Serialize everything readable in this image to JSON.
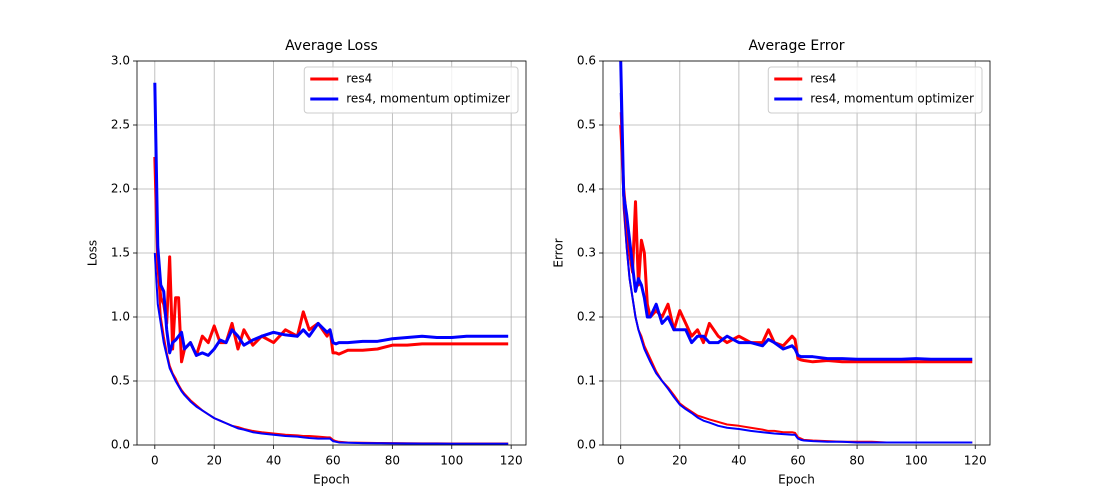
{
  "chart_data": [
    {
      "type": "line",
      "title": "Average Loss",
      "xlabel": "Epoch",
      "ylabel": "Loss",
      "x": [
        0,
        1,
        2,
        3,
        4,
        5,
        6,
        7,
        8,
        9,
        10,
        12,
        14,
        16,
        18,
        20,
        22,
        24,
        26,
        28,
        30,
        33,
        36,
        40,
        44,
        48,
        50,
        52,
        55,
        58,
        59,
        60,
        61,
        62,
        65,
        70,
        75,
        80,
        85,
        90,
        95,
        100,
        105,
        110,
        115,
        119
      ],
      "xlim": [
        -6,
        125
      ],
      "ylim": [
        0,
        3
      ],
      "xticks": [
        0,
        20,
        40,
        60,
        80,
        100,
        120
      ],
      "yticks": [
        {
          "value": 0,
          "label": "0.0"
        },
        0.5,
        {
          "value": 1,
          "label": "1.0"
        },
        1.5,
        {
          "value": 2,
          "label": "2.0"
        },
        2.5,
        {
          "value": 3,
          "label": "3.0"
        }
      ],
      "grid": true,
      "legend": "upper right",
      "series": [
        {
          "color": "#ff0000",
          "linewidth": 2,
          "values": [
            2.2,
            1.4,
            1.0,
            0.85,
            0.72,
            0.62,
            0.56,
            0.52,
            0.47,
            0.43,
            0.4,
            0.35,
            0.31,
            0.27,
            0.24,
            0.21,
            0.19,
            0.17,
            0.15,
            0.14,
            0.125,
            0.11,
            0.1,
            0.09,
            0.08,
            0.075,
            0.07,
            0.07,
            0.065,
            0.06,
            0.06,
            0.04,
            0.03,
            0.025,
            0.02,
            0.018,
            0.016,
            0.015,
            0.014,
            0.013,
            0.013,
            0.012,
            0.012,
            0.012,
            0.012,
            0.012
          ]
        },
        {
          "color": "#0000ff",
          "linewidth": 2,
          "values": [
            1.5,
            1.1,
            0.95,
            0.8,
            0.7,
            0.6,
            0.55,
            0.5,
            0.46,
            0.42,
            0.39,
            0.34,
            0.3,
            0.27,
            0.24,
            0.21,
            0.19,
            0.17,
            0.15,
            0.13,
            0.12,
            0.1,
            0.09,
            0.08,
            0.07,
            0.065,
            0.06,
            0.055,
            0.05,
            0.05,
            0.05,
            0.03,
            0.025,
            0.02,
            0.018,
            0.015,
            0.014,
            0.013,
            0.012,
            0.011,
            0.011,
            0.01,
            0.01,
            0.01,
            0.01,
            0.01
          ]
        },
        {
          "name": "res4",
          "color": "#ff0000",
          "linewidth": 3,
          "values": [
            2.25,
            1.4,
            1.15,
            1.1,
            0.95,
            1.47,
            0.75,
            1.15,
            1.15,
            0.65,
            0.75,
            0.8,
            0.7,
            0.85,
            0.8,
            0.93,
            0.8,
            0.8,
            0.95,
            0.75,
            0.9,
            0.78,
            0.85,
            0.8,
            0.9,
            0.85,
            1.04,
            0.9,
            0.95,
            0.85,
            0.9,
            0.72,
            0.72,
            0.71,
            0.74,
            0.74,
            0.75,
            0.78,
            0.78,
            0.79,
            0.79,
            0.79,
            0.79,
            0.79,
            0.79,
            0.79
          ]
        },
        {
          "name": "res4, momentum optimizer",
          "color": "#0000ff",
          "linewidth": 3,
          "values": [
            2.83,
            1.55,
            1.25,
            1.2,
            0.9,
            0.72,
            0.8,
            0.82,
            0.85,
            0.88,
            0.75,
            0.8,
            0.7,
            0.72,
            0.7,
            0.75,
            0.82,
            0.8,
            0.9,
            0.85,
            0.78,
            0.82,
            0.85,
            0.88,
            0.86,
            0.85,
            0.9,
            0.85,
            0.95,
            0.88,
            0.9,
            0.8,
            0.79,
            0.8,
            0.8,
            0.81,
            0.81,
            0.83,
            0.84,
            0.85,
            0.84,
            0.84,
            0.85,
            0.85,
            0.85,
            0.85
          ]
        }
      ]
    },
    {
      "type": "line",
      "title": "Average Error",
      "xlabel": "Epoch",
      "ylabel": "Error",
      "x": [
        0,
        1,
        2,
        3,
        4,
        5,
        6,
        7,
        8,
        9,
        10,
        12,
        14,
        16,
        18,
        20,
        22,
        24,
        26,
        28,
        30,
        33,
        36,
        40,
        44,
        48,
        50,
        52,
        55,
        58,
        59,
        60,
        61,
        62,
        65,
        70,
        75,
        80,
        85,
        90,
        95,
        100,
        105,
        110,
        115,
        119
      ],
      "xlim": [
        -6,
        125
      ],
      "ylim": [
        0,
        0.6
      ],
      "xticks": [
        0,
        20,
        40,
        60,
        80,
        100,
        120
      ],
      "yticks": [
        {
          "value": 0,
          "label": "0.0"
        },
        0.1,
        0.2,
        0.3,
        0.4,
        0.5,
        0.6
      ],
      "grid": true,
      "legend": "upper right",
      "series": [
        {
          "color": "#ff0000",
          "linewidth": 2,
          "values": [
            0.52,
            0.37,
            0.31,
            0.26,
            0.23,
            0.2,
            0.18,
            0.17,
            0.155,
            0.145,
            0.135,
            0.115,
            0.1,
            0.09,
            0.078,
            0.065,
            0.058,
            0.052,
            0.046,
            0.043,
            0.04,
            0.036,
            0.032,
            0.03,
            0.027,
            0.024,
            0.022,
            0.022,
            0.02,
            0.02,
            0.019,
            0.012,
            0.01,
            0.008,
            0.007,
            0.006,
            0.005,
            0.005,
            0.005,
            0.004,
            0.004,
            0.004,
            0.004,
            0.004,
            0.004,
            0.004
          ]
        },
        {
          "color": "#0000ff",
          "linewidth": 2,
          "values": [
            0.55,
            0.38,
            0.31,
            0.26,
            0.23,
            0.2,
            0.18,
            0.165,
            0.15,
            0.14,
            0.13,
            0.112,
            0.1,
            0.088,
            0.075,
            0.063,
            0.056,
            0.05,
            0.043,
            0.038,
            0.035,
            0.03,
            0.027,
            0.025,
            0.022,
            0.02,
            0.019,
            0.018,
            0.017,
            0.016,
            0.016,
            0.01,
            0.008,
            0.007,
            0.006,
            0.005,
            0.005,
            0.004,
            0.004,
            0.004,
            0.004,
            0.004,
            0.004,
            0.004,
            0.004,
            0.004
          ]
        },
        {
          "name": "res4",
          "color": "#ff0000",
          "linewidth": 3,
          "values": [
            0.5,
            0.4,
            0.35,
            0.3,
            0.27,
            0.38,
            0.25,
            0.32,
            0.3,
            0.22,
            0.2,
            0.21,
            0.2,
            0.22,
            0.18,
            0.21,
            0.19,
            0.17,
            0.18,
            0.16,
            0.19,
            0.17,
            0.16,
            0.17,
            0.16,
            0.16,
            0.18,
            0.16,
            0.155,
            0.17,
            0.165,
            0.135,
            0.133,
            0.132,
            0.13,
            0.132,
            0.13,
            0.13,
            0.13,
            0.13,
            0.13,
            0.13,
            0.13,
            0.13,
            0.13,
            0.13
          ]
        },
        {
          "name": "res4, momentum optimizer",
          "color": "#0000ff",
          "linewidth": 3,
          "values": [
            0.6,
            0.39,
            0.36,
            0.32,
            0.28,
            0.24,
            0.26,
            0.25,
            0.23,
            0.2,
            0.2,
            0.22,
            0.19,
            0.2,
            0.18,
            0.18,
            0.18,
            0.16,
            0.17,
            0.17,
            0.16,
            0.16,
            0.17,
            0.16,
            0.16,
            0.155,
            0.165,
            0.16,
            0.15,
            0.155,
            0.15,
            0.14,
            0.138,
            0.138,
            0.138,
            0.135,
            0.135,
            0.134,
            0.134,
            0.134,
            0.134,
            0.135,
            0.134,
            0.134,
            0.134,
            0.134
          ]
        }
      ]
    }
  ]
}
